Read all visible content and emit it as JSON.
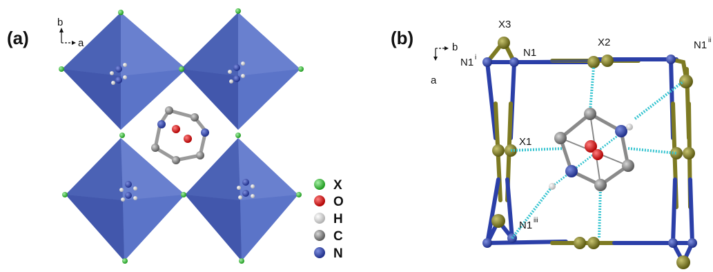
{
  "panels": {
    "a": {
      "label": "(a)",
      "axis_b": "b",
      "axis_a": "a"
    },
    "b": {
      "label": "(b)",
      "axis_b": "b",
      "axis_a": "a",
      "atom_labels": {
        "x3": "X3",
        "n1": "N1",
        "x2": "X2",
        "x1": "X1",
        "n1_i": "N1",
        "n1_i_sup": "i",
        "n1_iii": "N1",
        "n1_iii_sup": "iii",
        "n1_ii": "N1",
        "n1_ii_sup": "ii"
      }
    }
  },
  "legend": [
    {
      "symbol": "X",
      "color": "#3fc23f"
    },
    {
      "symbol": "O",
      "color": "#e01515"
    },
    {
      "symbol": "H",
      "color": "#e6e6e6"
    },
    {
      "symbol": "C",
      "color": "#8c8c8c"
    },
    {
      "symbol": "N",
      "color": "#2b3fa8"
    }
  ],
  "colors": {
    "octahedron": "#4a64c0",
    "halide_b": "#7d7a22",
    "nitrogen": "#2b3fa8",
    "hbond": "#35c4d0"
  }
}
